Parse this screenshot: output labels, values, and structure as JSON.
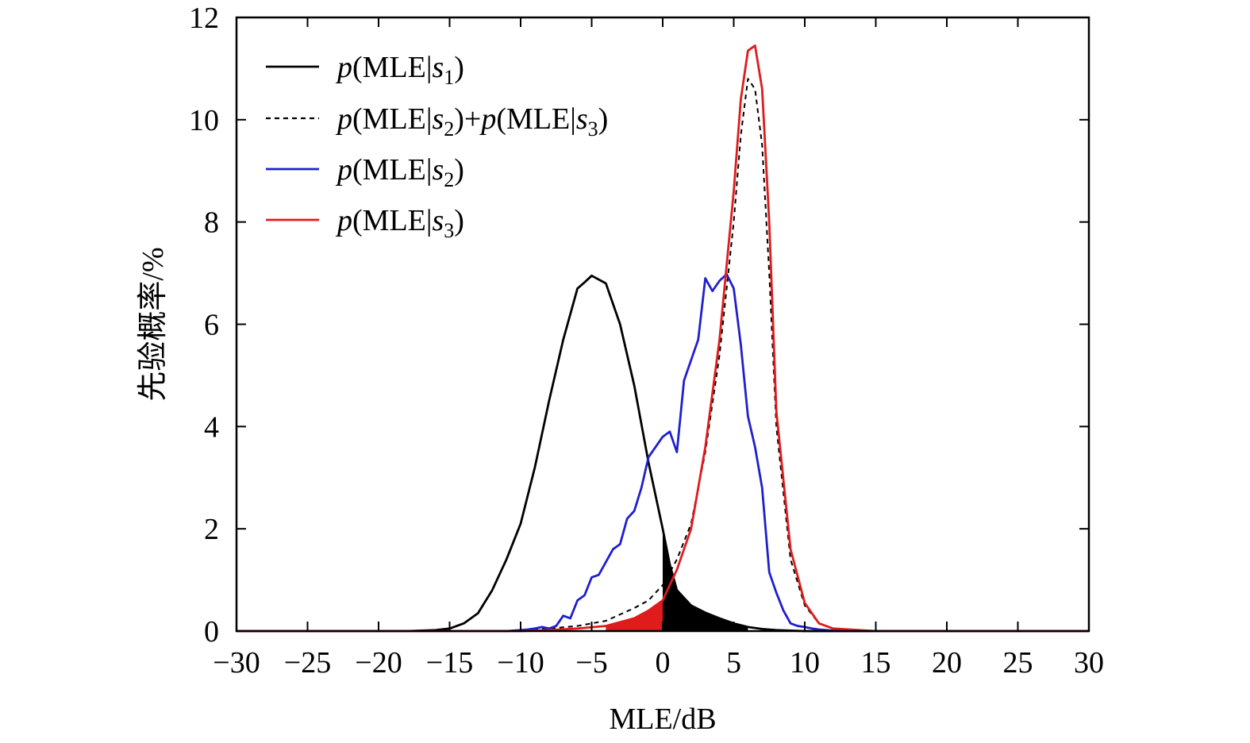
{
  "chart_data": {
    "type": "line",
    "title": "",
    "xlabel": "MLE/dB",
    "ylabel": "先验概率/%",
    "xlim": [
      -30,
      30
    ],
    "ylim": [
      0,
      12
    ],
    "xticks": [
      "−30",
      "−25",
      "−20",
      "−15",
      "−10",
      "−5",
      "0",
      "5",
      "10",
      "15",
      "20",
      "25",
      "30"
    ],
    "yticks": [
      "0",
      "2",
      "4",
      "6",
      "8",
      "10",
      "12"
    ],
    "grid": false,
    "legend_position": "top-left",
    "series": [
      {
        "name": "p(MLE|s1)",
        "legend": {
          "italic": "p",
          "prefix": "(MLE|",
          "var": "s",
          "sub": "1",
          "suffix": ")"
        },
        "color": "#000000",
        "dash": "solid",
        "x": [
          -30,
          -18,
          -16,
          -15,
          -14,
          -13,
          -12,
          -11,
          -10,
          -9,
          -8,
          -7,
          -6,
          -5.5,
          -5,
          -4,
          -3,
          -2,
          -1,
          0,
          0.5,
          1,
          2,
          3,
          4,
          5,
          6,
          7,
          8,
          10,
          30
        ],
        "y": [
          0,
          0,
          0.02,
          0.05,
          0.15,
          0.35,
          0.8,
          1.4,
          2.1,
          3.2,
          4.5,
          5.7,
          6.7,
          6.82,
          6.95,
          6.8,
          6.0,
          4.8,
          3.3,
          2.0,
          1.3,
          0.8,
          0.5,
          0.36,
          0.25,
          0.15,
          0.08,
          0.04,
          0.02,
          0,
          0
        ]
      },
      {
        "name": "p(MLE|s2)+p(MLE|s3)",
        "legend": {
          "italic": "p",
          "prefix": "(MLE|",
          "var": "s",
          "sub": "2",
          "suffix": ")+",
          "italic2": "p",
          "prefix2": "(MLE|",
          "var2": "s",
          "sub2": "3",
          "suffix2": ")"
        },
        "color": "#000000",
        "dash": "dashed",
        "x": [
          -30,
          -10,
          -8,
          -6,
          -4,
          -2,
          -1,
          0,
          1,
          2,
          3,
          4,
          5,
          5.5,
          6,
          6.5,
          7,
          7.5,
          8,
          9,
          10,
          11,
          12,
          15,
          30
        ],
        "y": [
          0,
          0,
          0.05,
          0.1,
          0.2,
          0.45,
          0.6,
          0.9,
          1.4,
          2.1,
          3.5,
          5.4,
          8.0,
          9.7,
          10.8,
          10.6,
          9.5,
          7.0,
          4.0,
          1.4,
          0.5,
          0.15,
          0.05,
          0,
          0
        ]
      },
      {
        "name": "p(MLE|s2)",
        "legend": {
          "italic": "p",
          "prefix": "(MLE|",
          "var": "s",
          "sub": "2",
          "suffix": ")"
        },
        "color": "#1f1fcf",
        "dash": "solid",
        "x": [
          -30,
          -11,
          -10,
          -9.5,
          -9,
          -8.5,
          -8,
          -7.5,
          -7,
          -6.5,
          -6,
          -5.5,
          -5,
          -4.5,
          -4,
          -3.5,
          -3,
          -2.5,
          -2,
          -1.5,
          -1,
          -0.5,
          0,
          0.5,
          1,
          1.5,
          2,
          2.5,
          3,
          3.5,
          4,
          4.5,
          5,
          5.5,
          6,
          6.5,
          7,
          7.5,
          8,
          8.5,
          9,
          9.5,
          10,
          10.5,
          11,
          12,
          13,
          30
        ],
        "y": [
          0,
          0,
          0.02,
          0.03,
          0.05,
          0.08,
          0.05,
          0.1,
          0.3,
          0.25,
          0.6,
          0.7,
          1.05,
          1.1,
          1.35,
          1.6,
          1.7,
          2.2,
          2.35,
          2.8,
          3.4,
          3.6,
          3.8,
          3.9,
          3.5,
          4.9,
          5.3,
          5.7,
          6.9,
          6.65,
          6.85,
          6.98,
          6.7,
          5.6,
          4.2,
          3.6,
          2.8,
          1.15,
          0.75,
          0.4,
          0.15,
          0.1,
          0.08,
          0.05,
          0.03,
          0.01,
          0,
          0
        ]
      },
      {
        "name": "p(MLE|s3)",
        "legend": {
          "italic": "p",
          "prefix": "(MLE|",
          "var": "s",
          "sub": "3",
          "suffix": ")"
        },
        "color": "#e01b1b",
        "dash": "solid",
        "x": [
          -30,
          -10,
          -8,
          -6,
          -4,
          -2,
          -1,
          0,
          1,
          2,
          3,
          4,
          5,
          5.5,
          6,
          6.5,
          7,
          7.5,
          8,
          9,
          10,
          11,
          12,
          15,
          30
        ],
        "y": [
          0,
          0,
          0.02,
          0.05,
          0.1,
          0.25,
          0.4,
          0.6,
          1.2,
          2.0,
          3.6,
          5.7,
          8.6,
          10.4,
          11.35,
          11.45,
          10.6,
          8.0,
          4.3,
          1.6,
          0.55,
          0.15,
          0.05,
          0,
          0
        ]
      }
    ],
    "shaded_regions": [
      {
        "under": "p(MLE|s3)",
        "x_from": -4,
        "x_to": 0,
        "color": "#e01b1b"
      },
      {
        "under": "p(MLE|s1)",
        "x_from": 0,
        "x_to": 6,
        "color": "#000000"
      }
    ]
  }
}
